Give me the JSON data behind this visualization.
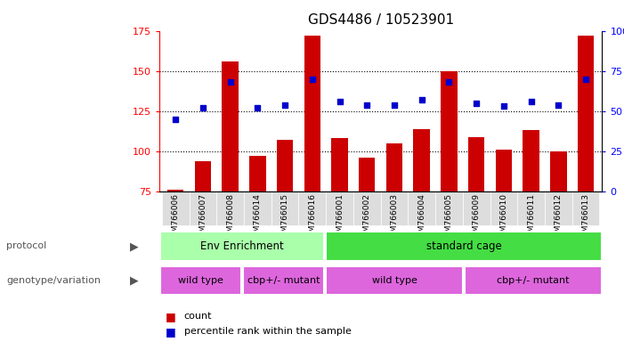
{
  "title": "GDS4486 / 10523901",
  "samples": [
    "GSM766006",
    "GSM766007",
    "GSM766008",
    "GSM766014",
    "GSM766015",
    "GSM766016",
    "GSM766001",
    "GSM766002",
    "GSM766003",
    "GSM766004",
    "GSM766005",
    "GSM766009",
    "GSM766010",
    "GSM766011",
    "GSM766012",
    "GSM766013"
  ],
  "counts": [
    76,
    94,
    156,
    97,
    107,
    172,
    108,
    96,
    105,
    114,
    150,
    109,
    101,
    113,
    100,
    172
  ],
  "percentiles": [
    45,
    52,
    68,
    52,
    54,
    70,
    56,
    54,
    54,
    57,
    68,
    55,
    53,
    56,
    54,
    70
  ],
  "ymin": 75,
  "ymax": 175,
  "yticks": [
    75,
    100,
    125,
    150,
    175
  ],
  "right_yticks": [
    0,
    25,
    50,
    75,
    100
  ],
  "bar_color": "#cc0000",
  "dot_color": "#0000cc",
  "bg_color": "#ffffff",
  "protocol_labels": [
    "Env Enrichment",
    "standard cage"
  ],
  "protocol_colors": [
    "#aaffaa",
    "#44dd44"
  ],
  "genotype_labels": [
    "wild type",
    "cbp+/- mutant",
    "wild type",
    "cbp+/- mutant"
  ],
  "genotype_color": "#dd66dd",
  "label_row1": "protocol",
  "label_row2": "genotype/variation",
  "legend_count": "count",
  "legend_pct": "percentile rank within the sample"
}
